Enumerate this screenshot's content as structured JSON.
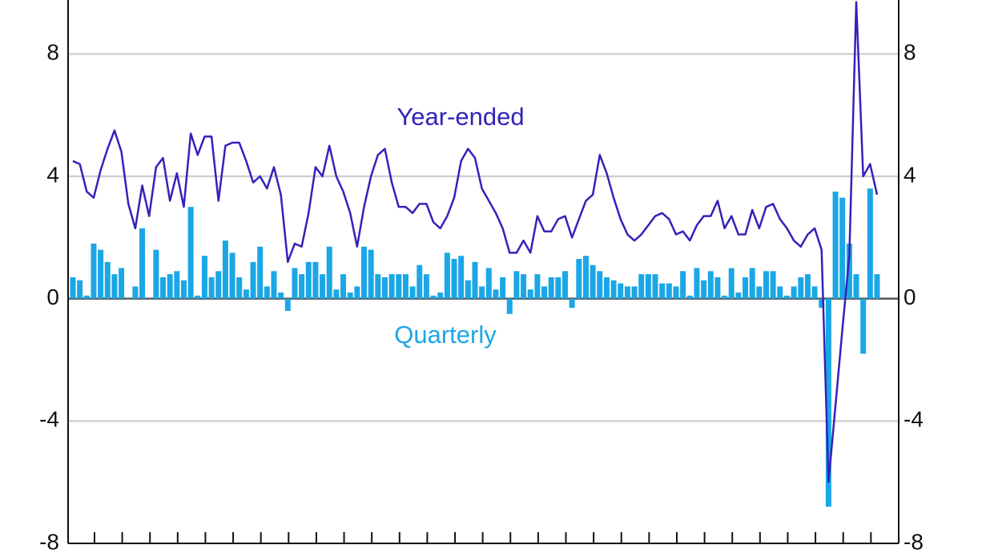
{
  "chart_data": {
    "type": "combo",
    "categories": [
      null,
      null,
      null,
      null,
      null,
      null,
      null,
      null,
      null,
      null,
      null,
      null,
      null,
      null,
      null,
      null,
      null,
      null,
      null,
      null,
      null,
      null,
      null,
      null,
      null,
      null,
      null,
      null,
      null,
      null,
      null,
      null,
      null,
      null,
      null,
      null,
      null,
      null,
      null,
      null,
      null,
      null,
      null,
      null,
      null,
      null,
      null,
      null,
      null,
      null,
      null,
      null,
      null,
      null,
      null,
      null,
      null,
      null,
      null,
      null,
      null,
      null,
      null,
      null,
      null,
      null,
      null,
      null,
      null,
      null,
      null,
      null,
      null,
      null,
      null,
      null,
      null,
      null,
      null,
      null,
      null,
      null,
      null,
      null,
      null,
      null,
      null,
      null,
      null,
      null,
      null,
      null,
      null,
      null,
      null,
      null,
      null,
      null,
      null,
      null,
      null,
      null,
      null,
      null,
      null,
      null,
      null,
      null,
      null,
      null,
      null,
      null,
      null,
      null,
      null,
      null,
      null
    ],
    "series": [
      {
        "name": "Quarterly",
        "type": "bar",
        "color": "#1ba7e6",
        "axis": "y",
        "values": [
          0.7,
          0.6,
          0.1,
          1.8,
          1.6,
          1.2,
          0.8,
          1.0,
          0.0,
          0.4,
          2.3,
          0.0,
          1.6,
          0.7,
          0.8,
          0.9,
          0.6,
          3.0,
          0.1,
          1.4,
          0.7,
          0.9,
          1.9,
          1.5,
          0.7,
          0.3,
          1.2,
          1.7,
          0.4,
          0.9,
          0.2,
          -0.4,
          1.0,
          0.8,
          1.2,
          1.2,
          0.8,
          1.7,
          0.3,
          0.8,
          0.2,
          0.4,
          1.7,
          1.6,
          0.8,
          0.7,
          0.8,
          0.8,
          0.8,
          0.4,
          1.1,
          0.8,
          0.1,
          0.2,
          1.5,
          1.3,
          1.4,
          0.6,
          1.2,
          0.4,
          1.0,
          0.3,
          0.7,
          -0.5,
          0.9,
          0.8,
          0.3,
          0.8,
          0.4,
          0.7,
          0.7,
          0.9,
          -0.3,
          1.3,
          1.4,
          1.1,
          0.9,
          0.7,
          0.6,
          0.5,
          0.4,
          0.4,
          0.8,
          0.8,
          0.8,
          0.5,
          0.5,
          0.4,
          0.9,
          0.1,
          1.0,
          0.6,
          0.9,
          0.7,
          0.1,
          1.0,
          0.2,
          0.7,
          1.0,
          0.4,
          0.9,
          0.9,
          0.4,
          0.1,
          0.4,
          0.7,
          0.8,
          0.4,
          -0.3,
          -6.8,
          3.5,
          3.3,
          1.8,
          0.8,
          -1.8,
          3.6,
          0.8
        ]
      },
      {
        "name": "Year-ended",
        "type": "line",
        "color": "#3322bb",
        "axis": "y",
        "values": [
          4.5,
          4.4,
          3.5,
          3.3,
          4.2,
          4.9,
          5.5,
          4.8,
          3.1,
          2.3,
          3.7,
          2.7,
          4.3,
          4.6,
          3.2,
          4.1,
          3.0,
          5.4,
          4.7,
          5.3,
          5.3,
          3.2,
          5.0,
          5.1,
          5.1,
          4.5,
          3.8,
          4.0,
          3.6,
          4.3,
          3.4,
          1.2,
          1.8,
          1.7,
          2.8,
          4.3,
          4.0,
          5.0,
          4.0,
          3.5,
          2.8,
          1.7,
          3.0,
          4.0,
          4.7,
          4.9,
          3.8,
          3.0,
          3.0,
          2.8,
          3.1,
          3.1,
          2.5,
          2.3,
          2.7,
          3.3,
          4.5,
          4.9,
          4.6,
          3.6,
          3.2,
          2.8,
          2.3,
          1.5,
          1.5,
          1.9,
          1.5,
          2.7,
          2.2,
          2.2,
          2.6,
          2.7,
          2.0,
          2.6,
          3.2,
          3.4,
          4.7,
          4.1,
          3.3,
          2.6,
          2.1,
          1.9,
          2.1,
          2.4,
          2.7,
          2.8,
          2.6,
          2.1,
          2.2,
          1.9,
          2.4,
          2.7,
          2.7,
          3.2,
          2.3,
          2.7,
          2.1,
          2.1,
          2.9,
          2.3,
          3.0,
          3.1,
          2.6,
          2.3,
          1.9,
          1.7,
          2.1,
          2.3,
          1.6,
          -6.0,
          -3.5,
          -1.0,
          1.4,
          9.7,
          4.0,
          4.4,
          3.4
        ]
      }
    ],
    "ylim": [
      -8,
      10
    ],
    "yticks": [
      -8,
      -4,
      0,
      4,
      8
    ],
    "y2lim": [
      -8,
      10
    ],
    "y2ticks": [
      -8,
      -4,
      0,
      4,
      8
    ],
    "grid": true
  }
}
